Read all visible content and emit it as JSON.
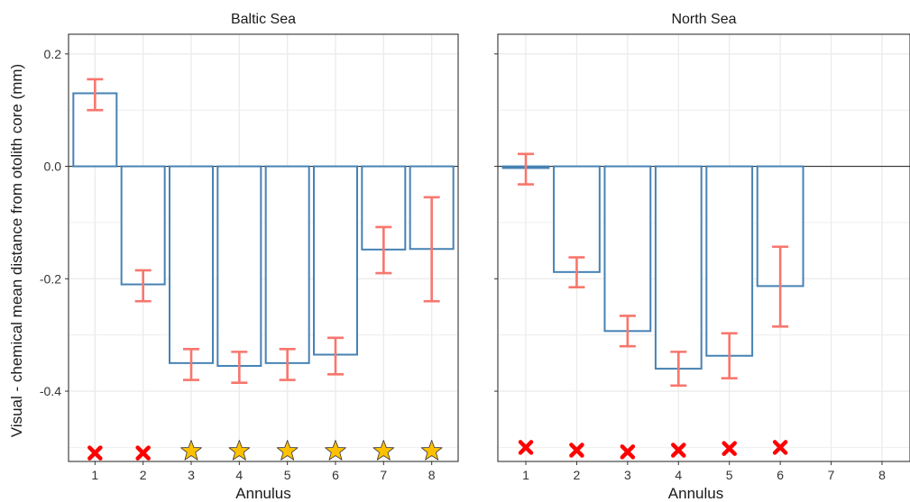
{
  "chart_data": [
    {
      "type": "bar",
      "panel": "Baltic Sea",
      "title": "Baltic Sea",
      "categories": [
        "1",
        "2",
        "3",
        "4",
        "5",
        "6",
        "7",
        "8"
      ],
      "values": [
        0.13,
        -0.21,
        -0.35,
        -0.355,
        -0.35,
        -0.335,
        -0.148,
        -0.147
      ],
      "error_low": [
        0.1,
        -0.24,
        -0.38,
        -0.385,
        -0.38,
        -0.37,
        -0.19,
        -0.24
      ],
      "error_high": [
        0.155,
        -0.185,
        -0.325,
        -0.33,
        -0.325,
        -0.305,
        -0.108,
        -0.055
      ],
      "markers": [
        "cross",
        "cross",
        "star",
        "star",
        "star",
        "star",
        "star",
        "star"
      ],
      "marker_y": [
        -0.51,
        -0.51,
        -0.505,
        -0.505,
        -0.505,
        -0.505,
        -0.505,
        -0.505
      ]
    },
    {
      "type": "bar",
      "panel": "North Sea",
      "title": "North Sea",
      "categories": [
        "1",
        "2",
        "3",
        "4",
        "5",
        "6",
        "7",
        "8"
      ],
      "values": [
        -0.003,
        -0.188,
        -0.293,
        -0.36,
        -0.337,
        -0.213,
        null,
        null
      ],
      "error_low": [
        -0.032,
        -0.215,
        -0.32,
        -0.39,
        -0.377,
        -0.285,
        null,
        null
      ],
      "error_high": [
        0.022,
        -0.162,
        -0.266,
        -0.33,
        -0.297,
        -0.143,
        null,
        null
      ],
      "markers": [
        "cross",
        "cross",
        "cross",
        "cross",
        "cross",
        "cross",
        null,
        null
      ],
      "marker_y": [
        -0.5,
        -0.505,
        -0.508,
        -0.505,
        -0.502,
        -0.5,
        null,
        null
      ]
    }
  ],
  "axes": {
    "ylabel": "Visual - chemical mean distance from otolith core (mm)",
    "xlabel": "Annulus",
    "ylim": [
      -0.525,
      0.235
    ],
    "xlim": [
      0.45,
      8.55
    ],
    "yticks": [
      0.2,
      0.0,
      -0.2,
      -0.4
    ],
    "ytick_labels": [
      "0.2",
      "0.0",
      "-0.2",
      "-0.4"
    ],
    "grid": true
  },
  "colors": {
    "bar_stroke": "#4682b4",
    "bar_fill": "#ffffff",
    "error_bar": "#f8766d",
    "cross": "#ff0000",
    "star_fill": "#ffc000",
    "star_stroke": "#333333",
    "grid": "#ebebeb",
    "zero_line": "#333333",
    "panel_border": "#333333"
  }
}
